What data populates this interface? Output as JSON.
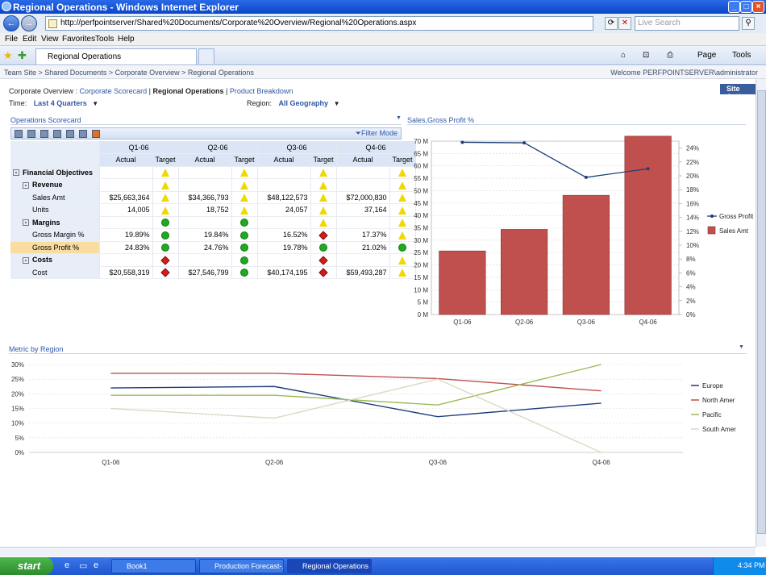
{
  "window": {
    "title": "Regional Operations - Windows Internet Explorer",
    "url": "http://perfpointserver/Shared%20Documents/Corporate%20Overview/Regional%20Operations.aspx",
    "search_placeholder": "Live Search"
  },
  "menu": [
    "File",
    "Edit",
    "View",
    "Favorites",
    "Tools",
    "Help"
  ],
  "tab": {
    "label": "Regional Operations"
  },
  "toolbar_right": {
    "page": "Page",
    "tools": "Tools"
  },
  "sharepoint": {
    "breadcrumb": "Team Site > Shared Documents > Corporate Overview > Regional Operations",
    "welcome": "Welcome PERFPOINTSERVER\\administrator",
    "site_actions": "Site Actions"
  },
  "dashboard_nav": {
    "prefix": "Corporate Overview :",
    "link1": "Corporate Scorecard",
    "sep": "|",
    "current": "Regional Operations",
    "sep2": "|",
    "link2": "Product Breakdown"
  },
  "filters": {
    "time_label": "Time:",
    "time_value": "Last 4 Quarters",
    "region_label": "Region:",
    "region_value": "All Geography"
  },
  "scorecard": {
    "title": "Operations Scorecard",
    "filter_mode": "Filter Mode",
    "quarters": [
      "Q1-06",
      "Q2-06",
      "Q3-06",
      "Q4-06"
    ],
    "col_actual": "Actual",
    "col_target": "Target",
    "rows": [
      {
        "name": "Financial Objectives",
        "level": 0,
        "bold": true,
        "exp": "-",
        "actuals": [
          "",
          "",
          "",
          ""
        ],
        "targets": [
          "yellow",
          "yellow",
          "yellow",
          "yellow"
        ]
      },
      {
        "name": "Revenue",
        "level": 1,
        "bold": true,
        "exp": "-",
        "actuals": [
          "",
          "",
          "",
          ""
        ],
        "targets": [
          "yellow",
          "yellow",
          "yellow",
          "yellow"
        ]
      },
      {
        "name": "Sales Amt",
        "level": 2,
        "bold": false,
        "exp": "",
        "actuals": [
          "$25,663,364",
          "$34,366,793",
          "$48,122,573",
          "$72,000,830"
        ],
        "targets": [
          "yellow",
          "yellow",
          "yellow",
          "yellow"
        ]
      },
      {
        "name": "Units",
        "level": 2,
        "bold": false,
        "exp": "",
        "actuals": [
          "14,005",
          "18,752",
          "24,057",
          "37,164"
        ],
        "targets": [
          "yellow",
          "yellow",
          "yellow",
          "yellow"
        ]
      },
      {
        "name": "Margins",
        "level": 1,
        "bold": true,
        "exp": "-",
        "actuals": [
          "",
          "",
          "",
          ""
        ],
        "targets": [
          "green",
          "green",
          "yellow",
          "yellow"
        ]
      },
      {
        "name": "Gross Margin %",
        "level": 2,
        "bold": false,
        "exp": "",
        "actuals": [
          "19.89%",
          "19.84%",
          "16.52%",
          "17.37%"
        ],
        "targets": [
          "green",
          "green",
          "red",
          "yellow"
        ]
      },
      {
        "name": "Gross Profit %",
        "level": 2,
        "bold": false,
        "exp": "",
        "highlight": true,
        "actuals": [
          "24.83%",
          "24.76%",
          "19.78%",
          "21.02%"
        ],
        "targets": [
          "green",
          "green",
          "green",
          "green"
        ]
      },
      {
        "name": "Costs",
        "level": 1,
        "bold": true,
        "exp": "-",
        "actuals": [
          "",
          "",
          "",
          ""
        ],
        "targets": [
          "red",
          "green",
          "red",
          "yellow"
        ]
      },
      {
        "name": "Cost",
        "level": 2,
        "bold": false,
        "exp": "",
        "actuals": [
          "$20,558,319",
          "$27,546,799",
          "$40,174,195",
          "$59,493,287"
        ],
        "targets": [
          "red",
          "green",
          "red",
          "yellow"
        ]
      }
    ]
  },
  "combo_chart": {
    "title": "Sales,Gross Profit %"
  },
  "line_chart": {
    "title": "Metric by Region"
  },
  "chart_data": [
    {
      "type": "bar",
      "categories": [
        "Q1-06",
        "Q2-06",
        "Q3-06",
        "Q4-06"
      ],
      "series": [
        {
          "name": "Sales Amt",
          "kind": "bar",
          "axis": "left",
          "color": "#c0504d",
          "values": [
            25663364,
            34366793,
            48122573,
            72000830
          ]
        },
        {
          "name": "Gross Profit %",
          "kind": "line",
          "axis": "right",
          "color": "#1f3f7a",
          "values": [
            24.83,
            24.76,
            19.78,
            21.02
          ]
        }
      ],
      "y_left": {
        "min": 0,
        "max": 70000000,
        "step": 5000000,
        "ticks": [
          "0 M",
          "5 M",
          "10 M",
          "15 M",
          "20 M",
          "25 M",
          "30 M",
          "35 M",
          "40 M",
          "45 M",
          "50 M",
          "55 M",
          "60 M",
          "65 M",
          "70 M"
        ]
      },
      "y_right": {
        "min": 0,
        "max": 25,
        "ticks": [
          "0%",
          "2%",
          "4%",
          "6%",
          "8%",
          "10%",
          "12%",
          "14%",
          "16%",
          "18%",
          "20%",
          "22%",
          "24%"
        ]
      },
      "legend": [
        "Gross Profit %",
        "Sales Amt"
      ]
    },
    {
      "type": "line",
      "categories": [
        "Q1-06",
        "Q2-06",
        "Q3-06",
        "Q4-06"
      ],
      "series": [
        {
          "name": "Europe",
          "color": "#1f3f7a",
          "values": [
            22,
            22.5,
            12.2,
            16.8
          ]
        },
        {
          "name": "North Amer",
          "color": "#c0504d",
          "values": [
            27,
            27,
            25.2,
            21
          ]
        },
        {
          "name": "Pacific",
          "color": "#9bbb59",
          "values": [
            19.5,
            19.5,
            16.2,
            30
          ]
        },
        {
          "name": "South Amer",
          "color": "#ddd9c3",
          "values": [
            15,
            11.7,
            25,
            0
          ]
        }
      ],
      "y": {
        "min": 0,
        "max": 30,
        "ticks": [
          "0%",
          "5%",
          "10%",
          "15%",
          "20%",
          "25%",
          "30%"
        ]
      },
      "legend": [
        "Europe",
        "North Amer",
        "Pacific",
        "South Amer"
      ]
    }
  ],
  "taskbar": {
    "start": "start",
    "tasks": [
      "Book1",
      "Production Forecast-...",
      "Regional Operations -..."
    ],
    "clock": "4:34 PM"
  }
}
